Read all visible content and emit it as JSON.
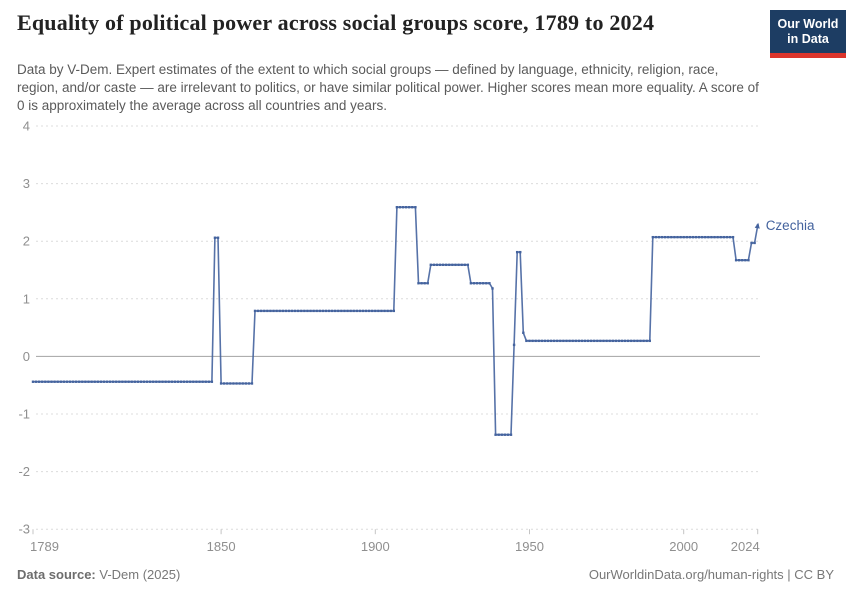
{
  "header": {
    "title": "Equality of political power across social groups score, 1789 to 2024",
    "subtitle": "Data by V-Dem. Expert estimates of the extent to which social groups — defined by language, ethnicity, religion, race, region, and/or caste — are irrelevant to politics, or have similar political power. Higher scores mean more equality. A score of 0 is approximately the average across all countries and years.",
    "logo": {
      "line1": "Our World",
      "line2": "in Data"
    }
  },
  "footer": {
    "source_label": "Data source:",
    "source_value": " V-Dem (2025)",
    "credit": "OurWorldinData.org/human-rights | CC BY"
  },
  "chart_data": {
    "type": "line",
    "title": "Equality of political power across social groups score, 1789 to 2024",
    "xlabel": "",
    "ylabel": "",
    "x_range": [
      1789,
      2024
    ],
    "ylim": [
      -3,
      4
    ],
    "x_ticks": [
      "1789",
      "1850",
      "1900",
      "1950",
      "2000",
      "2024"
    ],
    "y_ticks": [
      "4",
      "3",
      "2",
      "1",
      "0",
      "-1",
      "-2",
      "-3"
    ],
    "grid": "horizontal-dashed, solid line at 0",
    "legend": "label at end of line",
    "series": [
      {
        "name": "Czechia",
        "color": "#44639E",
        "steps": [
          {
            "from": 1789,
            "to": 1847,
            "value": -0.44
          },
          {
            "from": 1848,
            "to": 1849,
            "value": 2.06
          },
          {
            "from": 1850,
            "to": 1860,
            "value": -0.47
          },
          {
            "from": 1861,
            "to": 1906,
            "value": 0.79
          },
          {
            "from": 1907,
            "to": 1913,
            "value": 2.59
          },
          {
            "from": 1914,
            "to": 1917,
            "value": 1.27
          },
          {
            "from": 1918,
            "to": 1930,
            "value": 1.59
          },
          {
            "from": 1931,
            "to": 1937,
            "value": 1.27
          },
          {
            "from": 1938,
            "to": 1938,
            "value": 1.18
          },
          {
            "from": 1939,
            "to": 1944,
            "value": -1.36
          },
          {
            "from": 1945,
            "to": 1945,
            "value": 0.2
          },
          {
            "from": 1946,
            "to": 1947,
            "value": 1.81
          },
          {
            "from": 1948,
            "to": 1948,
            "value": 0.41
          },
          {
            "from": 1949,
            "to": 1989,
            "value": 0.27
          },
          {
            "from": 1990,
            "to": 2016,
            "value": 2.07
          },
          {
            "from": 2017,
            "to": 2021,
            "value": 1.67
          },
          {
            "from": 2022,
            "to": 2023,
            "value": 1.97
          },
          {
            "from": 2024,
            "to": 2024,
            "value": 2.27
          }
        ]
      }
    ]
  },
  "colors": {
    "line": "#44639E",
    "grid": "#dcdcdc",
    "zero_line": "#a3a3a3",
    "tick": "#c4c4c4",
    "axis_text": "#8f8f8f",
    "logo_bg": "#1d3d63",
    "logo_red": "#dc352c"
  }
}
